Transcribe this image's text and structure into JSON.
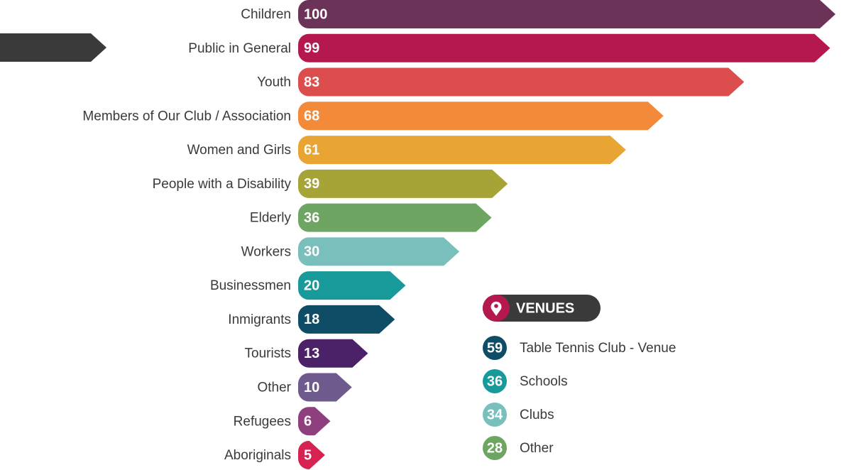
{
  "chart_data": {
    "type": "bar",
    "categories": [
      "Children",
      "Public in General",
      "Youth",
      "Members of Our Club / Association",
      "Women and Girls",
      "People with a Disability",
      "Elderly",
      "Workers",
      "Businessmen",
      "Inmigrants",
      "Tourists",
      "Other",
      "Refugees",
      "Aboriginals"
    ],
    "values": [
      100,
      99,
      83,
      68,
      61,
      39,
      36,
      30,
      20,
      18,
      13,
      10,
      6,
      5
    ],
    "colors": [
      "#6b3358",
      "#b5174f",
      "#dc4e4e",
      "#f28a3a",
      "#e9a534",
      "#a6a337",
      "#6fa563",
      "#79c0bd",
      "#18999a",
      "#0f4c66",
      "#4b2168",
      "#6f5a8e",
      "#8e3f7d",
      "#d62252"
    ]
  },
  "venues": {
    "title": "VENUES",
    "items": [
      {
        "value": 59,
        "label": "Table Tennis Club - Venue",
        "color": "#0f4c66"
      },
      {
        "value": 36,
        "label": "Schools",
        "color": "#18999a"
      },
      {
        "value": 34,
        "label": "Clubs",
        "color": "#79c0bd"
      },
      {
        "value": 28,
        "label": "Other",
        "color": "#6fa563"
      }
    ]
  }
}
